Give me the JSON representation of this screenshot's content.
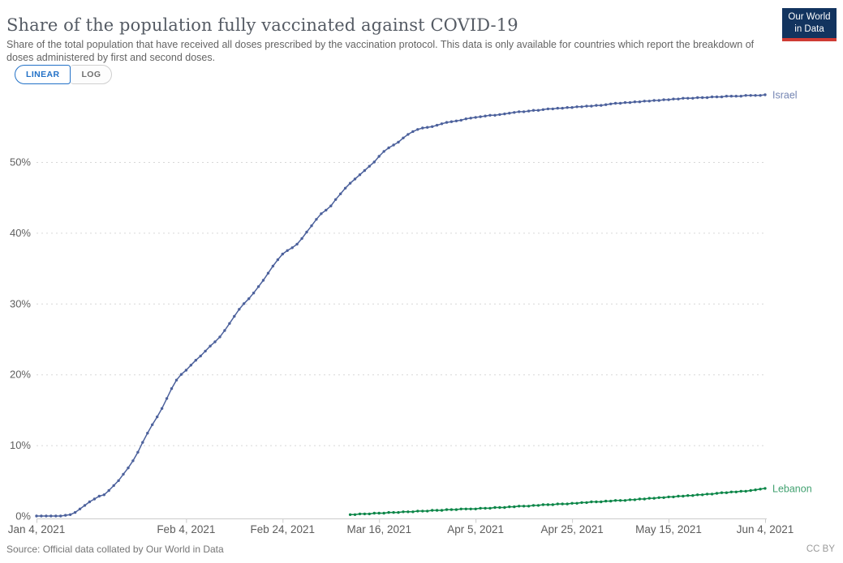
{
  "header": {
    "title": "Share of the population fully vaccinated against COVID-19",
    "subtitle": "Share of the total population that have received all doses prescribed by the vaccination protocol. This data is only available for countries which report the breakdown of doses administered by first and second doses.",
    "logo": {
      "line1": "Our World",
      "line2": "in Data"
    }
  },
  "toolbar": {
    "linear_label": "LINEAR",
    "log_label": "LOG",
    "active": "LINEAR",
    "active_color": "#2271c7"
  },
  "footer": {
    "source_label": "Source: Official data collated by Our World in Data",
    "license_label": "CC BY"
  },
  "chart_data": {
    "type": "line",
    "title": "Share of the population fully vaccinated against COVID-19",
    "x_range_days": [
      0,
      151
    ],
    "x_axis": {
      "ticks": [
        {
          "label": "Jan 4, 2021",
          "day": 0
        },
        {
          "label": "Feb 4, 2021",
          "day": 31
        },
        {
          "label": "Feb 24, 2021",
          "day": 51
        },
        {
          "label": "Mar 16, 2021",
          "day": 71
        },
        {
          "label": "Apr 5, 2021",
          "day": 91
        },
        {
          "label": "Apr 25, 2021",
          "day": 111
        },
        {
          "label": "May 15, 2021",
          "day": 131
        },
        {
          "label": "Jun 4, 2021",
          "day": 151
        }
      ]
    },
    "y_axis": {
      "unit": "%",
      "tick_values": [
        0,
        10,
        20,
        30,
        40,
        50
      ],
      "tick_labels": [
        "0%",
        "10%",
        "20%",
        "30%",
        "40%",
        "50%"
      ],
      "range": [
        0,
        60
      ],
      "gridlines": "dashed"
    },
    "series": [
      {
        "name": "Israel",
        "color": "#4c619c",
        "start_day": 0,
        "interval_days": 1,
        "values": [
          0,
          0,
          0,
          0,
          0,
          0,
          0.1,
          0.2,
          0.5,
          1.0,
          1.5,
          2.0,
          2.4,
          2.8,
          3.0,
          3.6,
          4.3,
          5.0,
          5.9,
          6.8,
          7.8,
          9.0,
          10.4,
          11.7,
          12.9,
          14.0,
          15.2,
          16.6,
          18.0,
          19.2,
          20.0,
          20.6,
          21.3,
          22.0,
          22.6,
          23.3,
          24.0,
          24.6,
          25.3,
          26.2,
          27.2,
          28.2,
          29.2,
          30.0,
          30.7,
          31.5,
          32.4,
          33.3,
          34.3,
          35.3,
          36.2,
          37.0,
          37.5,
          37.9,
          38.4,
          39.2,
          40.1,
          41.0,
          41.9,
          42.7,
          43.2,
          43.8,
          44.7,
          45.5,
          46.3,
          47.0,
          47.6,
          48.2,
          48.8,
          49.4,
          50.0,
          50.8,
          51.5,
          52.0,
          52.4,
          52.8,
          53.4,
          53.9,
          54.3,
          54.6,
          54.8,
          54.9,
          55.0,
          55.2,
          55.4,
          55.6,
          55.7,
          55.8,
          55.9,
          56.1,
          56.2,
          56.3,
          56.4,
          56.5,
          56.6,
          56.6,
          56.7,
          56.8,
          56.9,
          57.0,
          57.1,
          57.1,
          57.2,
          57.3,
          57.3,
          57.4,
          57.5,
          57.5,
          57.6,
          57.6,
          57.7,
          57.7,
          57.8,
          57.8,
          57.9,
          57.9,
          58.0,
          58.0,
          58.1,
          58.2,
          58.3,
          58.3,
          58.4,
          58.4,
          58.5,
          58.5,
          58.6,
          58.6,
          58.7,
          58.7,
          58.8,
          58.8,
          58.9,
          58.9,
          59.0,
          59.0,
          59.0,
          59.1,
          59.1,
          59.1,
          59.2,
          59.2,
          59.2,
          59.3,
          59.3,
          59.3,
          59.3,
          59.4,
          59.4,
          59.4,
          59.4,
          59.5
        ]
      },
      {
        "name": "Lebanon",
        "color": "#0c8648",
        "start_day": 65,
        "interval_days": 1,
        "values": [
          0.2,
          0.2,
          0.3,
          0.3,
          0.3,
          0.4,
          0.4,
          0.4,
          0.5,
          0.5,
          0.5,
          0.6,
          0.6,
          0.6,
          0.7,
          0.7,
          0.7,
          0.8,
          0.8,
          0.8,
          0.9,
          0.9,
          0.9,
          1.0,
          1.0,
          1.0,
          1.0,
          1.1,
          1.1,
          1.1,
          1.2,
          1.2,
          1.2,
          1.3,
          1.3,
          1.4,
          1.4,
          1.4,
          1.5,
          1.5,
          1.6,
          1.6,
          1.6,
          1.7,
          1.7,
          1.7,
          1.8,
          1.8,
          1.9,
          1.9,
          2.0,
          2.0,
          2.0,
          2.1,
          2.1,
          2.2,
          2.2,
          2.2,
          2.3,
          2.3,
          2.4,
          2.4,
          2.5,
          2.5,
          2.6,
          2.6,
          2.7,
          2.7,
          2.8,
          2.8,
          2.9,
          2.9,
          3.0,
          3.0,
          3.1,
          3.1,
          3.2,
          3.3,
          3.3,
          3.4,
          3.4,
          3.5,
          3.5,
          3.6,
          3.7,
          3.8,
          3.9
        ]
      }
    ],
    "legend_position": "end-of-line-labels",
    "grid_on": true
  }
}
